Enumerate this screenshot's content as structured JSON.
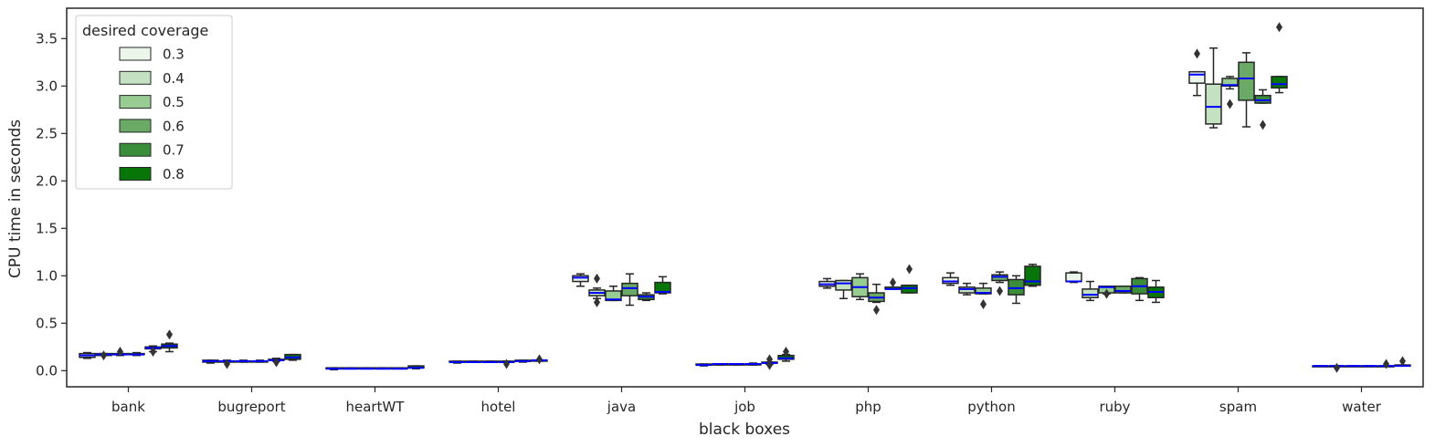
{
  "chart_data": {
    "type": "box",
    "title": "",
    "xlabel": "black boxes",
    "ylabel": "CPU time in seconds",
    "ylim": [
      -0.17,
      3.82
    ],
    "yticks": [
      0.0,
      0.5,
      1.0,
      1.5,
      2.0,
      2.5,
      3.0,
      3.5
    ],
    "ytick_labels": [
      "0.0",
      "0.5",
      "1.0",
      "1.5",
      "2.0",
      "2.5",
      "3.0",
      "3.5"
    ],
    "categories": [
      "bank",
      "bugreport",
      "heartWT",
      "hotel",
      "java",
      "job",
      "php",
      "python",
      "ruby",
      "spam",
      "water"
    ],
    "legend": {
      "title": "desired coverage",
      "position": "top-left"
    },
    "median_color": "#0000ff",
    "series": [
      {
        "name": "0.3",
        "color": "#ebf5e9",
        "boxes": [
          {
            "wl": 0.13,
            "q1": 0.14,
            "med": 0.16,
            "q3": 0.18,
            "wh": 0.19,
            "fliers": []
          },
          {
            "wl": 0.08,
            "q1": 0.09,
            "med": 0.1,
            "q3": 0.11,
            "wh": 0.11,
            "fliers": []
          },
          {
            "wl": 0.01,
            "q1": 0.02,
            "med": 0.02,
            "q3": 0.03,
            "wh": 0.03,
            "fliers": []
          },
          {
            "wl": 0.08,
            "q1": 0.09,
            "med": 0.09,
            "q3": 0.1,
            "wh": 0.1,
            "fliers": []
          },
          {
            "wl": 0.89,
            "q1": 0.94,
            "med": 0.98,
            "q3": 1.0,
            "wh": 1.02,
            "fliers": []
          },
          {
            "wl": 0.05,
            "q1": 0.06,
            "med": 0.06,
            "q3": 0.07,
            "wh": 0.07,
            "fliers": []
          },
          {
            "wl": 0.87,
            "q1": 0.89,
            "med": 0.91,
            "q3": 0.94,
            "wh": 0.97,
            "fliers": []
          },
          {
            "wl": 0.9,
            "q1": 0.92,
            "med": 0.94,
            "q3": 0.98,
            "wh": 1.03,
            "fliers": []
          },
          {
            "wl": 0.93,
            "q1": 0.94,
            "med": 0.94,
            "q3": 1.03,
            "wh": 1.04,
            "fliers": []
          },
          {
            "wl": 2.9,
            "q1": 3.03,
            "med": 3.12,
            "q3": 3.15,
            "wh": 3.15,
            "fliers": [
              3.34
            ]
          },
          {
            "wl": 0.05,
            "q1": 0.05,
            "med": 0.05,
            "q3": 0.05,
            "wh": 0.05,
            "fliers": []
          }
        ]
      },
      {
        "name": "0.4",
        "color": "#c4e2c1",
        "boxes": [
          {
            "wl": 0.16,
            "q1": 0.16,
            "med": 0.17,
            "q3": 0.18,
            "wh": 0.18,
            "fliers": [
              0.16
            ]
          },
          {
            "wl": 0.09,
            "q1": 0.09,
            "med": 0.1,
            "q3": 0.1,
            "wh": 0.11,
            "fliers": [
              0.07
            ]
          },
          {
            "wl": 0.02,
            "q1": 0.02,
            "med": 0.02,
            "q3": 0.03,
            "wh": 0.03,
            "fliers": []
          },
          {
            "wl": 0.09,
            "q1": 0.09,
            "med": 0.09,
            "q3": 0.1,
            "wh": 0.1,
            "fliers": []
          },
          {
            "wl": 0.76,
            "q1": 0.79,
            "med": 0.82,
            "q3": 0.85,
            "wh": 0.87,
            "fliers": [
              0.72,
              0.97
            ]
          },
          {
            "wl": 0.06,
            "q1": 0.06,
            "med": 0.07,
            "q3": 0.07,
            "wh": 0.07,
            "fliers": []
          },
          {
            "wl": 0.76,
            "q1": 0.85,
            "med": 0.92,
            "q3": 0.95,
            "wh": 0.95,
            "fliers": []
          },
          {
            "wl": 0.8,
            "q1": 0.82,
            "med": 0.86,
            "q3": 0.88,
            "wh": 0.92,
            "fliers": []
          },
          {
            "wl": 0.74,
            "q1": 0.77,
            "med": 0.8,
            "q3": 0.86,
            "wh": 0.94,
            "fliers": []
          },
          {
            "wl": 2.56,
            "q1": 2.6,
            "med": 2.78,
            "q3": 3.02,
            "wh": 3.4,
            "fliers": []
          },
          {
            "wl": 0.05,
            "q1": 0.05,
            "med": 0.05,
            "q3": 0.05,
            "wh": 0.05,
            "fliers": [
              0.03
            ]
          }
        ]
      },
      {
        "name": "0.5",
        "color": "#97cc93",
        "boxes": [
          {
            "wl": 0.16,
            "q1": 0.17,
            "med": 0.17,
            "q3": 0.18,
            "wh": 0.18,
            "fliers": [
              0.2
            ]
          },
          {
            "wl": 0.09,
            "q1": 0.1,
            "med": 0.1,
            "q3": 0.1,
            "wh": 0.11,
            "fliers": []
          },
          {
            "wl": 0.02,
            "q1": 0.02,
            "med": 0.02,
            "q3": 0.03,
            "wh": 0.03,
            "fliers": []
          },
          {
            "wl": 0.09,
            "q1": 0.09,
            "med": 0.09,
            "q3": 0.1,
            "wh": 0.1,
            "fliers": []
          },
          {
            "wl": 0.74,
            "q1": 0.74,
            "med": 0.75,
            "q3": 0.84,
            "wh": 0.89,
            "fliers": []
          },
          {
            "wl": 0.06,
            "q1": 0.06,
            "med": 0.07,
            "q3": 0.07,
            "wh": 0.07,
            "fliers": []
          },
          {
            "wl": 0.75,
            "q1": 0.78,
            "med": 0.88,
            "q3": 0.98,
            "wh": 1.02,
            "fliers": []
          },
          {
            "wl": 0.81,
            "q1": 0.81,
            "med": 0.82,
            "q3": 0.87,
            "wh": 0.92,
            "fliers": [
              0.7
            ]
          },
          {
            "wl": 0.81,
            "q1": 0.82,
            "med": 0.88,
            "q3": 0.89,
            "wh": 0.89,
            "fliers": [
              0.81
            ]
          },
          {
            "wl": 2.97,
            "q1": 3.0,
            "med": 3.01,
            "q3": 3.08,
            "wh": 3.1,
            "fliers": [
              2.81
            ]
          },
          {
            "wl": 0.05,
            "q1": 0.05,
            "med": 0.05,
            "q3": 0.05,
            "wh": 0.05,
            "fliers": []
          }
        ]
      },
      {
        "name": "0.6",
        "color": "#6aaa66",
        "boxes": [
          {
            "wl": 0.16,
            "q1": 0.17,
            "med": 0.17,
            "q3": 0.18,
            "wh": 0.19,
            "fliers": []
          },
          {
            "wl": 0.09,
            "q1": 0.1,
            "med": 0.1,
            "q3": 0.1,
            "wh": 0.11,
            "fliers": []
          },
          {
            "wl": 0.02,
            "q1": 0.02,
            "med": 0.02,
            "q3": 0.03,
            "wh": 0.03,
            "fliers": []
          },
          {
            "wl": 0.09,
            "q1": 0.09,
            "med": 0.09,
            "q3": 0.1,
            "wh": 0.1,
            "fliers": [
              0.07
            ]
          },
          {
            "wl": 0.69,
            "q1": 0.79,
            "med": 0.87,
            "q3": 0.92,
            "wh": 1.02,
            "fliers": []
          },
          {
            "wl": 0.06,
            "q1": 0.07,
            "med": 0.07,
            "q3": 0.07,
            "wh": 0.08,
            "fliers": []
          },
          {
            "wl": 0.72,
            "q1": 0.73,
            "med": 0.77,
            "q3": 0.82,
            "wh": 0.91,
            "fliers": [
              0.64
            ]
          },
          {
            "wl": 0.93,
            "q1": 0.95,
            "med": 0.99,
            "q3": 1.01,
            "wh": 1.04,
            "fliers": [
              0.84
            ]
          },
          {
            "wl": 0.82,
            "q1": 0.82,
            "med": 0.84,
            "q3": 0.89,
            "wh": 0.89,
            "fliers": []
          },
          {
            "wl": 2.57,
            "q1": 2.85,
            "med": 3.08,
            "q3": 3.25,
            "wh": 3.35,
            "fliers": []
          },
          {
            "wl": 0.05,
            "q1": 0.05,
            "med": 0.05,
            "q3": 0.05,
            "wh": 0.05,
            "fliers": []
          }
        ]
      },
      {
        "name": "0.7",
        "color": "#3a8e3a",
        "boxes": [
          {
            "wl": 0.2,
            "q1": 0.23,
            "med": 0.24,
            "q3": 0.25,
            "wh": 0.26,
            "fliers": [
              0.2
            ]
          },
          {
            "wl": 0.1,
            "q1": 0.11,
            "med": 0.11,
            "q3": 0.12,
            "wh": 0.13,
            "fliers": [
              0.09
            ]
          },
          {
            "wl": 0.02,
            "q1": 0.02,
            "med": 0.02,
            "q3": 0.03,
            "wh": 0.03,
            "fliers": []
          },
          {
            "wl": 0.09,
            "q1": 0.1,
            "med": 0.1,
            "q3": 0.11,
            "wh": 0.11,
            "fliers": []
          },
          {
            "wl": 0.74,
            "q1": 0.75,
            "med": 0.78,
            "q3": 0.8,
            "wh": 0.82,
            "fliers": []
          },
          {
            "wl": 0.07,
            "q1": 0.08,
            "med": 0.08,
            "q3": 0.09,
            "wh": 0.09,
            "fliers": [
              0.06,
              0.12
            ]
          },
          {
            "wl": 0.86,
            "q1": 0.86,
            "med": 0.86,
            "q3": 0.88,
            "wh": 0.88,
            "fliers": [
              0.93
            ]
          },
          {
            "wl": 0.71,
            "q1": 0.8,
            "med": 0.87,
            "q3": 0.96,
            "wh": 1.0,
            "fliers": []
          },
          {
            "wl": 0.74,
            "q1": 0.81,
            "med": 0.89,
            "q3": 0.97,
            "wh": 0.98,
            "fliers": []
          },
          {
            "wl": 2.82,
            "q1": 2.82,
            "med": 2.85,
            "q3": 2.9,
            "wh": 2.96,
            "fliers": [
              2.59
            ]
          },
          {
            "wl": 0.05,
            "q1": 0.05,
            "med": 0.05,
            "q3": 0.05,
            "wh": 0.05,
            "fliers": [
              0.07
            ]
          }
        ]
      },
      {
        "name": "0.8",
        "color": "#077507",
        "boxes": [
          {
            "wl": 0.2,
            "q1": 0.24,
            "med": 0.26,
            "q3": 0.28,
            "wh": 0.29,
            "fliers": [
              0.38
            ]
          },
          {
            "wl": 0.11,
            "q1": 0.12,
            "med": 0.14,
            "q3": 0.17,
            "wh": 0.17,
            "fliers": []
          },
          {
            "wl": 0.02,
            "q1": 0.03,
            "med": 0.03,
            "q3": 0.05,
            "wh": 0.05,
            "fliers": []
          },
          {
            "wl": 0.1,
            "q1": 0.1,
            "med": 0.11,
            "q3": 0.11,
            "wh": 0.11,
            "fliers": [
              0.12
            ]
          },
          {
            "wl": 0.81,
            "q1": 0.82,
            "med": 0.83,
            "q3": 0.93,
            "wh": 0.99,
            "fliers": []
          },
          {
            "wl": 0.1,
            "q1": 0.12,
            "med": 0.13,
            "q3": 0.16,
            "wh": 0.17,
            "fliers": [
              0.2
            ]
          },
          {
            "wl": 0.82,
            "q1": 0.82,
            "med": 0.87,
            "q3": 0.9,
            "wh": 0.9,
            "fliers": [
              1.07
            ]
          },
          {
            "wl": 0.89,
            "q1": 0.9,
            "med": 0.94,
            "q3": 1.1,
            "wh": 1.12,
            "fliers": []
          },
          {
            "wl": 0.72,
            "q1": 0.77,
            "med": 0.83,
            "q3": 0.88,
            "wh": 0.95,
            "fliers": []
          },
          {
            "wl": 2.93,
            "q1": 2.98,
            "med": 3.02,
            "q3": 3.1,
            "wh": 3.1,
            "fliers": [
              3.62
            ]
          },
          {
            "wl": 0.05,
            "q1": 0.05,
            "med": 0.05,
            "q3": 0.06,
            "wh": 0.06,
            "fliers": [
              0.1
            ]
          }
        ]
      }
    ]
  }
}
